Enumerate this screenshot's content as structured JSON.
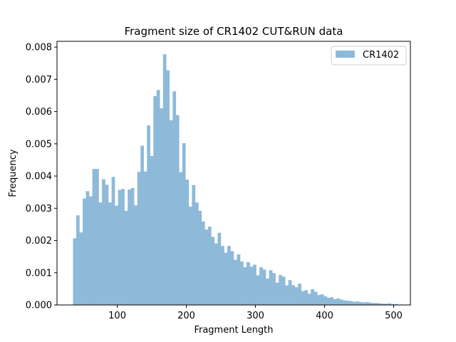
{
  "chart_data": {
    "type": "bar",
    "title": "Fragment size of CR1402 CUT&RUN data",
    "xlabel": "Fragment Length",
    "ylabel": "Frequency",
    "xlim": [
      12.8,
      524.2
    ],
    "ylim": [
      0,
      0.00818
    ],
    "xticks": [
      100,
      200,
      300,
      400,
      500
    ],
    "xtick_labels": [
      "100",
      "200",
      "300",
      "400",
      "500"
    ],
    "yticks": [
      0.0,
      0.001,
      0.002,
      0.003,
      0.004,
      0.005,
      0.006,
      0.007,
      0.008
    ],
    "ytick_labels": [
      "0.000",
      "0.001",
      "0.002",
      "0.003",
      "0.004",
      "0.005",
      "0.006",
      "0.007",
      "0.008"
    ],
    "legend_position": "top-right",
    "bar_color": "#8ebad9",
    "series": [
      {
        "name": "CR1402",
        "bin_start": 36,
        "bin_width": 4.65,
        "values": [
          0.00207,
          0.00278,
          0.00225,
          0.0033,
          0.00353,
          0.00337,
          0.00422,
          0.00422,
          0.00318,
          0.0039,
          0.00373,
          0.00318,
          0.00397,
          0.00308,
          0.00357,
          0.0036,
          0.00292,
          0.00358,
          0.00363,
          0.00309,
          0.00413,
          0.00494,
          0.00414,
          0.00557,
          0.00462,
          0.00648,
          0.00667,
          0.0061,
          0.00778,
          0.00728,
          0.00573,
          0.00663,
          0.00589,
          0.00412,
          0.00502,
          0.00389,
          0.00305,
          0.00372,
          0.00318,
          0.00292,
          0.00259,
          0.00234,
          0.00243,
          0.00211,
          0.00191,
          0.00224,
          0.00183,
          0.00162,
          0.00183,
          0.00167,
          0.0014,
          0.00157,
          0.00135,
          0.00117,
          0.00133,
          0.00119,
          0.00125,
          0.00092,
          0.00117,
          0.0011,
          0.00082,
          0.00108,
          0.00099,
          0.00069,
          0.00093,
          0.00088,
          0.00061,
          0.00077,
          0.00061,
          0.00055,
          0.00066,
          0.00043,
          0.00046,
          0.00035,
          0.00049,
          0.00041,
          0.00031,
          0.00033,
          0.00027,
          0.00022,
          0.00024,
          0.00018,
          0.0002,
          0.00017,
          0.00014,
          0.00013,
          0.00012,
          0.0001,
          0.00011,
          9e-05,
          8e-05,
          9e-05,
          7e-05,
          6e-05,
          6e-05,
          5e-05,
          4e-05,
          4e-05,
          5e-05,
          3e-05,
          3e-05
        ]
      }
    ]
  }
}
